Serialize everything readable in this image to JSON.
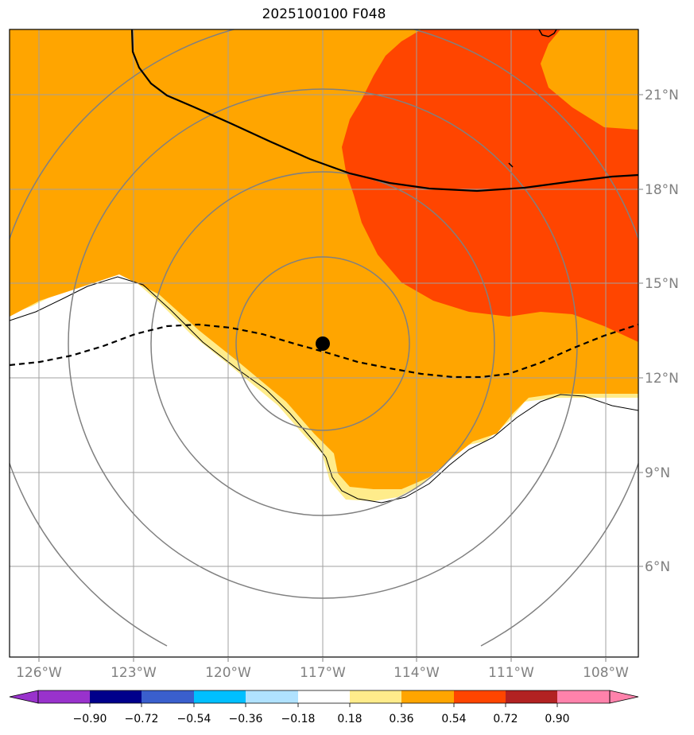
{
  "title": "2025100100 F048",
  "map": {
    "lon_ticks": [
      "126°W",
      "123°W",
      "120°W",
      "117°W",
      "114°W",
      "111°W",
      "108°W"
    ],
    "lat_ticks": [
      "21°N",
      "18°N",
      "15°N",
      "12°N",
      "9°N",
      "6°N"
    ],
    "center_marker": {
      "lon": -117.0,
      "lat": 13.1
    }
  },
  "colorbar": {
    "levels": [
      "−0.90",
      "−0.72",
      "−0.54",
      "−0.36",
      "−0.18",
      "0.18",
      "0.36",
      "0.54",
      "0.72",
      "0.90"
    ],
    "colors": [
      "#9932CC",
      "#00008B",
      "#3A5FCD",
      "#00BFFF",
      "#B0E2FF",
      "#FFFFFF",
      "#FFEC8B",
      "#FFA500",
      "#FF4500",
      "#B22222",
      "#FF82AB"
    ]
  }
}
